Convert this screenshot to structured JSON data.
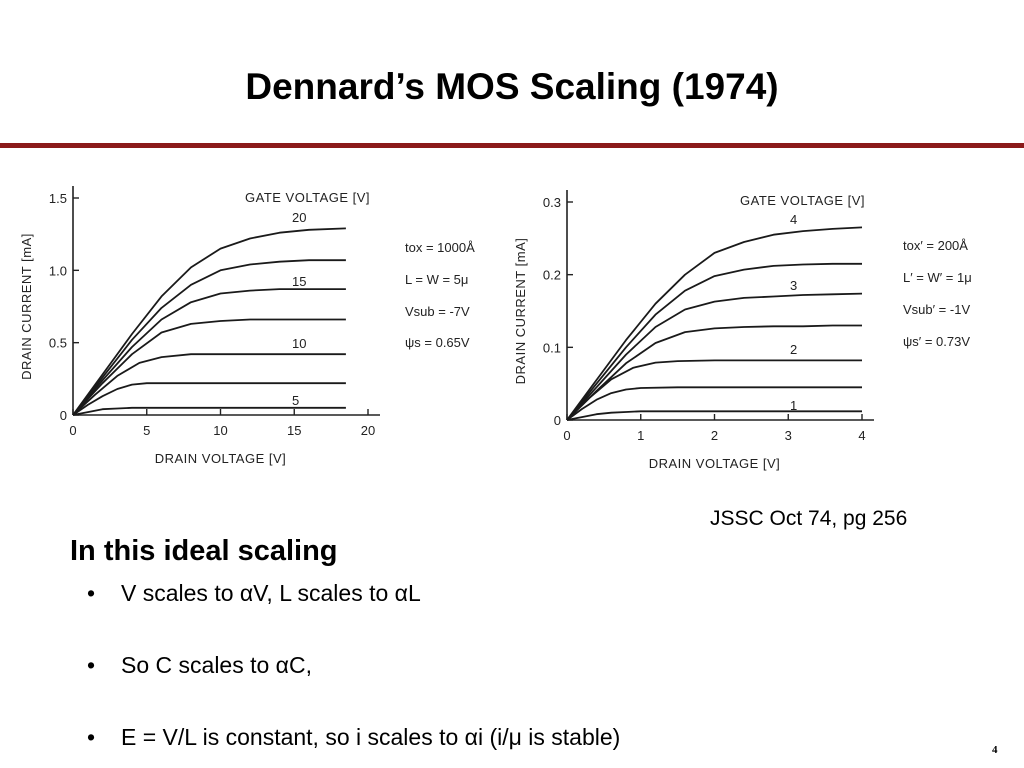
{
  "slide": {
    "title": "Dennard’s MOS Scaling (1974)",
    "citation": "JSSC Oct 74, pg 256",
    "heading": "In this ideal scaling",
    "bullets": [
      "V scales to αV, L scales to αL",
      "So C scales to αC,",
      "E = V/L is constant, so i scales to αi (i/μ is stable)"
    ],
    "bullet_symbol": "•",
    "page_number": "4",
    "accent_color": "#8b1a1a"
  },
  "chart_data": [
    {
      "type": "line",
      "xlabel": "DRAIN VOLTAGE [V]",
      "ylabel": "DRAIN CURRENT [mA]",
      "xlim": [
        0,
        20
      ],
      "ylim": [
        0,
        1.5
      ],
      "x_ticks": [
        "0",
        "5",
        "10",
        "15",
        "20"
      ],
      "y_ticks": [
        "0",
        "0.5",
        "1.0",
        "1.5"
      ],
      "legend_title": "GATE VOLTAGE [V]",
      "curve_labels": [
        "20",
        "15",
        "10",
        "5"
      ],
      "params": [
        "tox = 1000Å",
        "L = W = 5μ",
        "Vsub = -7V",
        "ψs = 0.65V"
      ],
      "series": [
        {
          "x": [
            0,
            2,
            4,
            6,
            8,
            10,
            12,
            14,
            16,
            18.5
          ],
          "y": [
            0,
            0.28,
            0.56,
            0.82,
            1.02,
            1.15,
            1.22,
            1.26,
            1.28,
            1.29
          ]
        },
        {
          "x": [
            0,
            2,
            4,
            6,
            8,
            10,
            12,
            14,
            16,
            18.5
          ],
          "y": [
            0,
            0.26,
            0.52,
            0.74,
            0.9,
            1.0,
            1.04,
            1.06,
            1.07,
            1.07
          ]
        },
        {
          "x": [
            0,
            2,
            4,
            6,
            8,
            10,
            12,
            14,
            16,
            18.5
          ],
          "y": [
            0,
            0.24,
            0.47,
            0.66,
            0.78,
            0.84,
            0.86,
            0.87,
            0.87,
            0.87
          ]
        },
        {
          "x": [
            0,
            2,
            4,
            6,
            8,
            10,
            12,
            14,
            16,
            18.5
          ],
          "y": [
            0,
            0.22,
            0.42,
            0.57,
            0.63,
            0.65,
            0.66,
            0.66,
            0.66,
            0.66
          ]
        },
        {
          "x": [
            0,
            1.5,
            3,
            4.5,
            6,
            8,
            10,
            12,
            14,
            16,
            18.5
          ],
          "y": [
            0,
            0.14,
            0.27,
            0.36,
            0.4,
            0.42,
            0.42,
            0.42,
            0.42,
            0.42,
            0.42
          ]
        },
        {
          "x": [
            0,
            1,
            2,
            3,
            4,
            5,
            6,
            8,
            10,
            12,
            14,
            16,
            18.5
          ],
          "y": [
            0,
            0.07,
            0.13,
            0.18,
            0.21,
            0.22,
            0.22,
            0.22,
            0.22,
            0.22,
            0.22,
            0.22,
            0.22
          ]
        },
        {
          "x": [
            0,
            1,
            2,
            3,
            4,
            6,
            8,
            10,
            12,
            14,
            16,
            18.5
          ],
          "y": [
            0,
            0.02,
            0.04,
            0.045,
            0.05,
            0.05,
            0.05,
            0.05,
            0.05,
            0.05,
            0.05,
            0.05
          ]
        }
      ]
    },
    {
      "type": "line",
      "xlabel": "DRAIN VOLTAGE [V]",
      "ylabel": "DRAIN CURRENT [mA]",
      "xlim": [
        0,
        4
      ],
      "ylim": [
        0,
        0.3
      ],
      "x_ticks": [
        "0",
        "1",
        "2",
        "3",
        "4"
      ],
      "y_ticks": [
        "0",
        "0.1",
        "0.2",
        "0.3"
      ],
      "legend_title": "GATE VOLTAGE [V]",
      "curve_labels": [
        "4",
        "3",
        "2",
        "1"
      ],
      "params": [
        "tox′ = 200Å",
        "L′ = W′ = 1μ",
        "Vsub′ = -1V",
        "ψs′ = 0.73V"
      ],
      "series": [
        {
          "x": [
            0,
            0.4,
            0.8,
            1.2,
            1.6,
            2,
            2.4,
            2.8,
            3.2,
            3.6,
            4
          ],
          "y": [
            0,
            0.055,
            0.11,
            0.16,
            0.2,
            0.23,
            0.245,
            0.255,
            0.26,
            0.263,
            0.265
          ]
        },
        {
          "x": [
            0,
            0.4,
            0.8,
            1.2,
            1.6,
            2,
            2.4,
            2.8,
            3.2,
            3.6,
            4
          ],
          "y": [
            0,
            0.05,
            0.1,
            0.145,
            0.178,
            0.198,
            0.207,
            0.212,
            0.214,
            0.215,
            0.215
          ]
        },
        {
          "x": [
            0,
            0.4,
            0.8,
            1.2,
            1.6,
            2,
            2.4,
            2.8,
            3.2,
            3.6,
            4
          ],
          "y": [
            0,
            0.045,
            0.09,
            0.128,
            0.152,
            0.163,
            0.168,
            0.17,
            0.172,
            0.173,
            0.174
          ]
        },
        {
          "x": [
            0,
            0.4,
            0.8,
            1.2,
            1.6,
            2,
            2.4,
            2.8,
            3.2,
            3.6,
            4
          ],
          "y": [
            0,
            0.04,
            0.078,
            0.106,
            0.121,
            0.126,
            0.128,
            0.129,
            0.129,
            0.13,
            0.13
          ]
        },
        {
          "x": [
            0,
            0.3,
            0.6,
            0.9,
            1.2,
            1.5,
            2,
            2.5,
            3,
            3.5,
            4
          ],
          "y": [
            0,
            0.03,
            0.056,
            0.072,
            0.079,
            0.081,
            0.082,
            0.082,
            0.082,
            0.082,
            0.082
          ]
        },
        {
          "x": [
            0,
            0.2,
            0.4,
            0.6,
            0.8,
            1,
            1.5,
            2,
            2.5,
            3,
            3.5,
            4
          ],
          "y": [
            0,
            0.015,
            0.028,
            0.037,
            0.042,
            0.044,
            0.045,
            0.045,
            0.045,
            0.045,
            0.045,
            0.045
          ]
        },
        {
          "x": [
            0,
            0.2,
            0.4,
            0.6,
            0.8,
            1,
            2,
            3,
            4
          ],
          "y": [
            0,
            0.004,
            0.008,
            0.01,
            0.011,
            0.012,
            0.012,
            0.012,
            0.012
          ]
        }
      ]
    }
  ]
}
